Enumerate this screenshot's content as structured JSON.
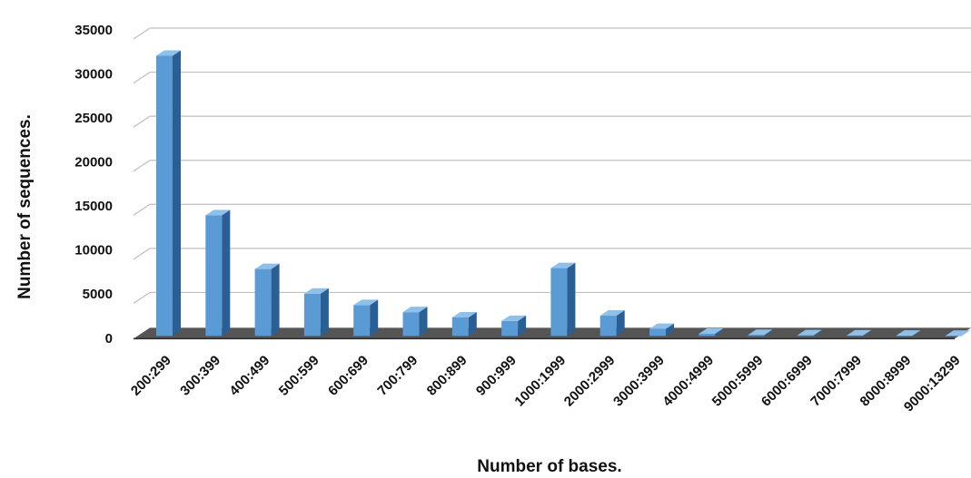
{
  "chart_data": {
    "type": "bar",
    "title": "",
    "xlabel": "Number of bases.",
    "ylabel": "Number of sequences.",
    "ylim": [
      0,
      35000
    ],
    "yticks": [
      0,
      5000,
      10000,
      15000,
      20000,
      25000,
      30000,
      35000
    ],
    "grid": true,
    "style": "3d",
    "categories": [
      "200:299",
      "300:399",
      "400:499",
      "500:599",
      "600:699",
      "700:799",
      "800:899",
      "900:999",
      "1000:1999",
      "2000:2999",
      "3000:3999",
      "4000:4999",
      "5000:5999",
      "6000:6999",
      "7000:7999",
      "8000:8999",
      "9000:13299"
    ],
    "values": [
      31800,
      13700,
      7600,
      4800,
      3500,
      2700,
      2100,
      1700,
      7700,
      2300,
      800,
      250,
      120,
      80,
      60,
      30,
      20
    ]
  },
  "colors": {
    "bar_front": "#5b9bd5",
    "bar_side": "#2a5f96",
    "bar_top": "#8ec0ea",
    "floor": "#555555",
    "grid": "#bfbfbf",
    "text": "#111111"
  }
}
